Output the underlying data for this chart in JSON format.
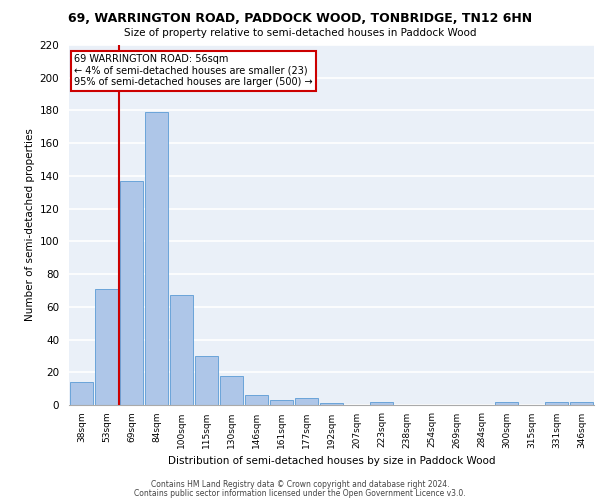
{
  "title1": "69, WARRINGTON ROAD, PADDOCK WOOD, TONBRIDGE, TN12 6HN",
  "title2": "Size of property relative to semi-detached houses in Paddock Wood",
  "xlabel": "Distribution of semi-detached houses by size in Paddock Wood",
  "ylabel": "Number of semi-detached properties",
  "categories": [
    "38sqm",
    "53sqm",
    "69sqm",
    "84sqm",
    "100sqm",
    "115sqm",
    "130sqm",
    "146sqm",
    "161sqm",
    "177sqm",
    "192sqm",
    "207sqm",
    "223sqm",
    "238sqm",
    "254sqm",
    "269sqm",
    "284sqm",
    "300sqm",
    "315sqm",
    "331sqm",
    "346sqm"
  ],
  "values": [
    14,
    71,
    137,
    179,
    67,
    30,
    18,
    6,
    3,
    4,
    1,
    0,
    2,
    0,
    0,
    0,
    0,
    2,
    0,
    2,
    2
  ],
  "bar_color": "#aec6e8",
  "bar_edge_color": "#5b9bd5",
  "annotation_title": "69 WARRINGTON ROAD: 56sqm",
  "annotation_line1": "← 4% of semi-detached houses are smaller (23)",
  "annotation_line2": "95% of semi-detached houses are larger (500) →",
  "annotation_box_color": "#ffffff",
  "annotation_box_edge": "#cc0000",
  "vline_color": "#cc0000",
  "vline_x": 1.5,
  "ylim": [
    0,
    220
  ],
  "yticks": [
    0,
    20,
    40,
    60,
    80,
    100,
    120,
    140,
    160,
    180,
    200,
    220
  ],
  "bg_color": "#eaf0f8",
  "grid_color": "#ffffff",
  "footer1": "Contains HM Land Registry data © Crown copyright and database right 2024.",
  "footer2": "Contains public sector information licensed under the Open Government Licence v3.0."
}
